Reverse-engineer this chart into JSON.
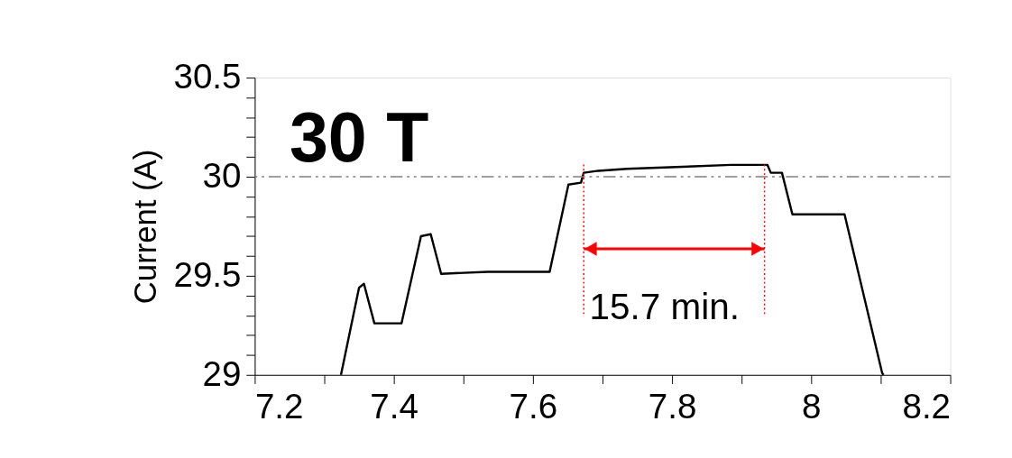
{
  "chart_data": {
    "type": "line",
    "ylabel": "Current (A)",
    "xlim": [
      7.2,
      8.2
    ],
    "ylim": [
      29,
      30.5
    ],
    "xticks": [
      7.2,
      {
        "value": 7.3,
        "label": null
      },
      7.4,
      {
        "value": 7.5,
        "label": null
      },
      7.6,
      {
        "value": 7.7,
        "label": null
      },
      7.8,
      {
        "value": 7.9,
        "label": null
      },
      8,
      {
        "value": 8.1,
        "label": null
      },
      8.2
    ],
    "yticks": [
      29,
      {
        "value": 29.1,
        "label": null
      },
      {
        "value": 29.2,
        "label": null
      },
      {
        "value": 29.3,
        "label": null
      },
      {
        "value": 29.4,
        "label": null
      },
      29.5,
      {
        "value": 29.6,
        "label": null
      },
      {
        "value": 29.7,
        "label": null
      },
      {
        "value": 29.8,
        "label": null
      },
      {
        "value": 29.9,
        "label": null
      },
      30,
      {
        "value": 30.1,
        "label": null
      },
      {
        "value": 30.2,
        "label": null
      },
      {
        "value": 30.3,
        "label": null
      },
      {
        "value": 30.4,
        "label": null
      },
      30.5
    ],
    "grid": false,
    "line_style": "solid",
    "marker": "none",
    "series": [
      {
        "color": "#000000",
        "x": [
          7.324,
          7.35,
          7.357,
          7.372,
          7.411,
          7.439,
          7.453,
          7.468,
          7.535,
          7.624,
          7.651,
          7.669,
          7.673,
          7.694,
          7.735,
          7.815,
          7.885,
          7.937,
          7.942,
          7.958,
          7.973,
          8.048,
          8.102,
          8.104
        ],
        "values": [
          29,
          29.44,
          29.46,
          29.26,
          29.26,
          29.7,
          29.71,
          29.51,
          29.52,
          29.52,
          29.96,
          29.97,
          30.02,
          30.03,
          30.04,
          30.05,
          30.06,
          30.06,
          30.02,
          30.02,
          29.81,
          29.81,
          29.01,
          29
        ]
      }
    ],
    "ref_lines": [
      {
        "axis": "y",
        "value": 30,
        "color": "#808080",
        "line_style": "dashdotdot"
      },
      {
        "axis": "x",
        "value": 7.673,
        "color": "#ff0000",
        "line_style": "dotted"
      },
      {
        "axis": "x",
        "value": 7.933,
        "color": "#ff0000",
        "line_style": "dotted"
      }
    ],
    "annotations": [
      "30 T",
      "15.7 min."
    ]
  }
}
